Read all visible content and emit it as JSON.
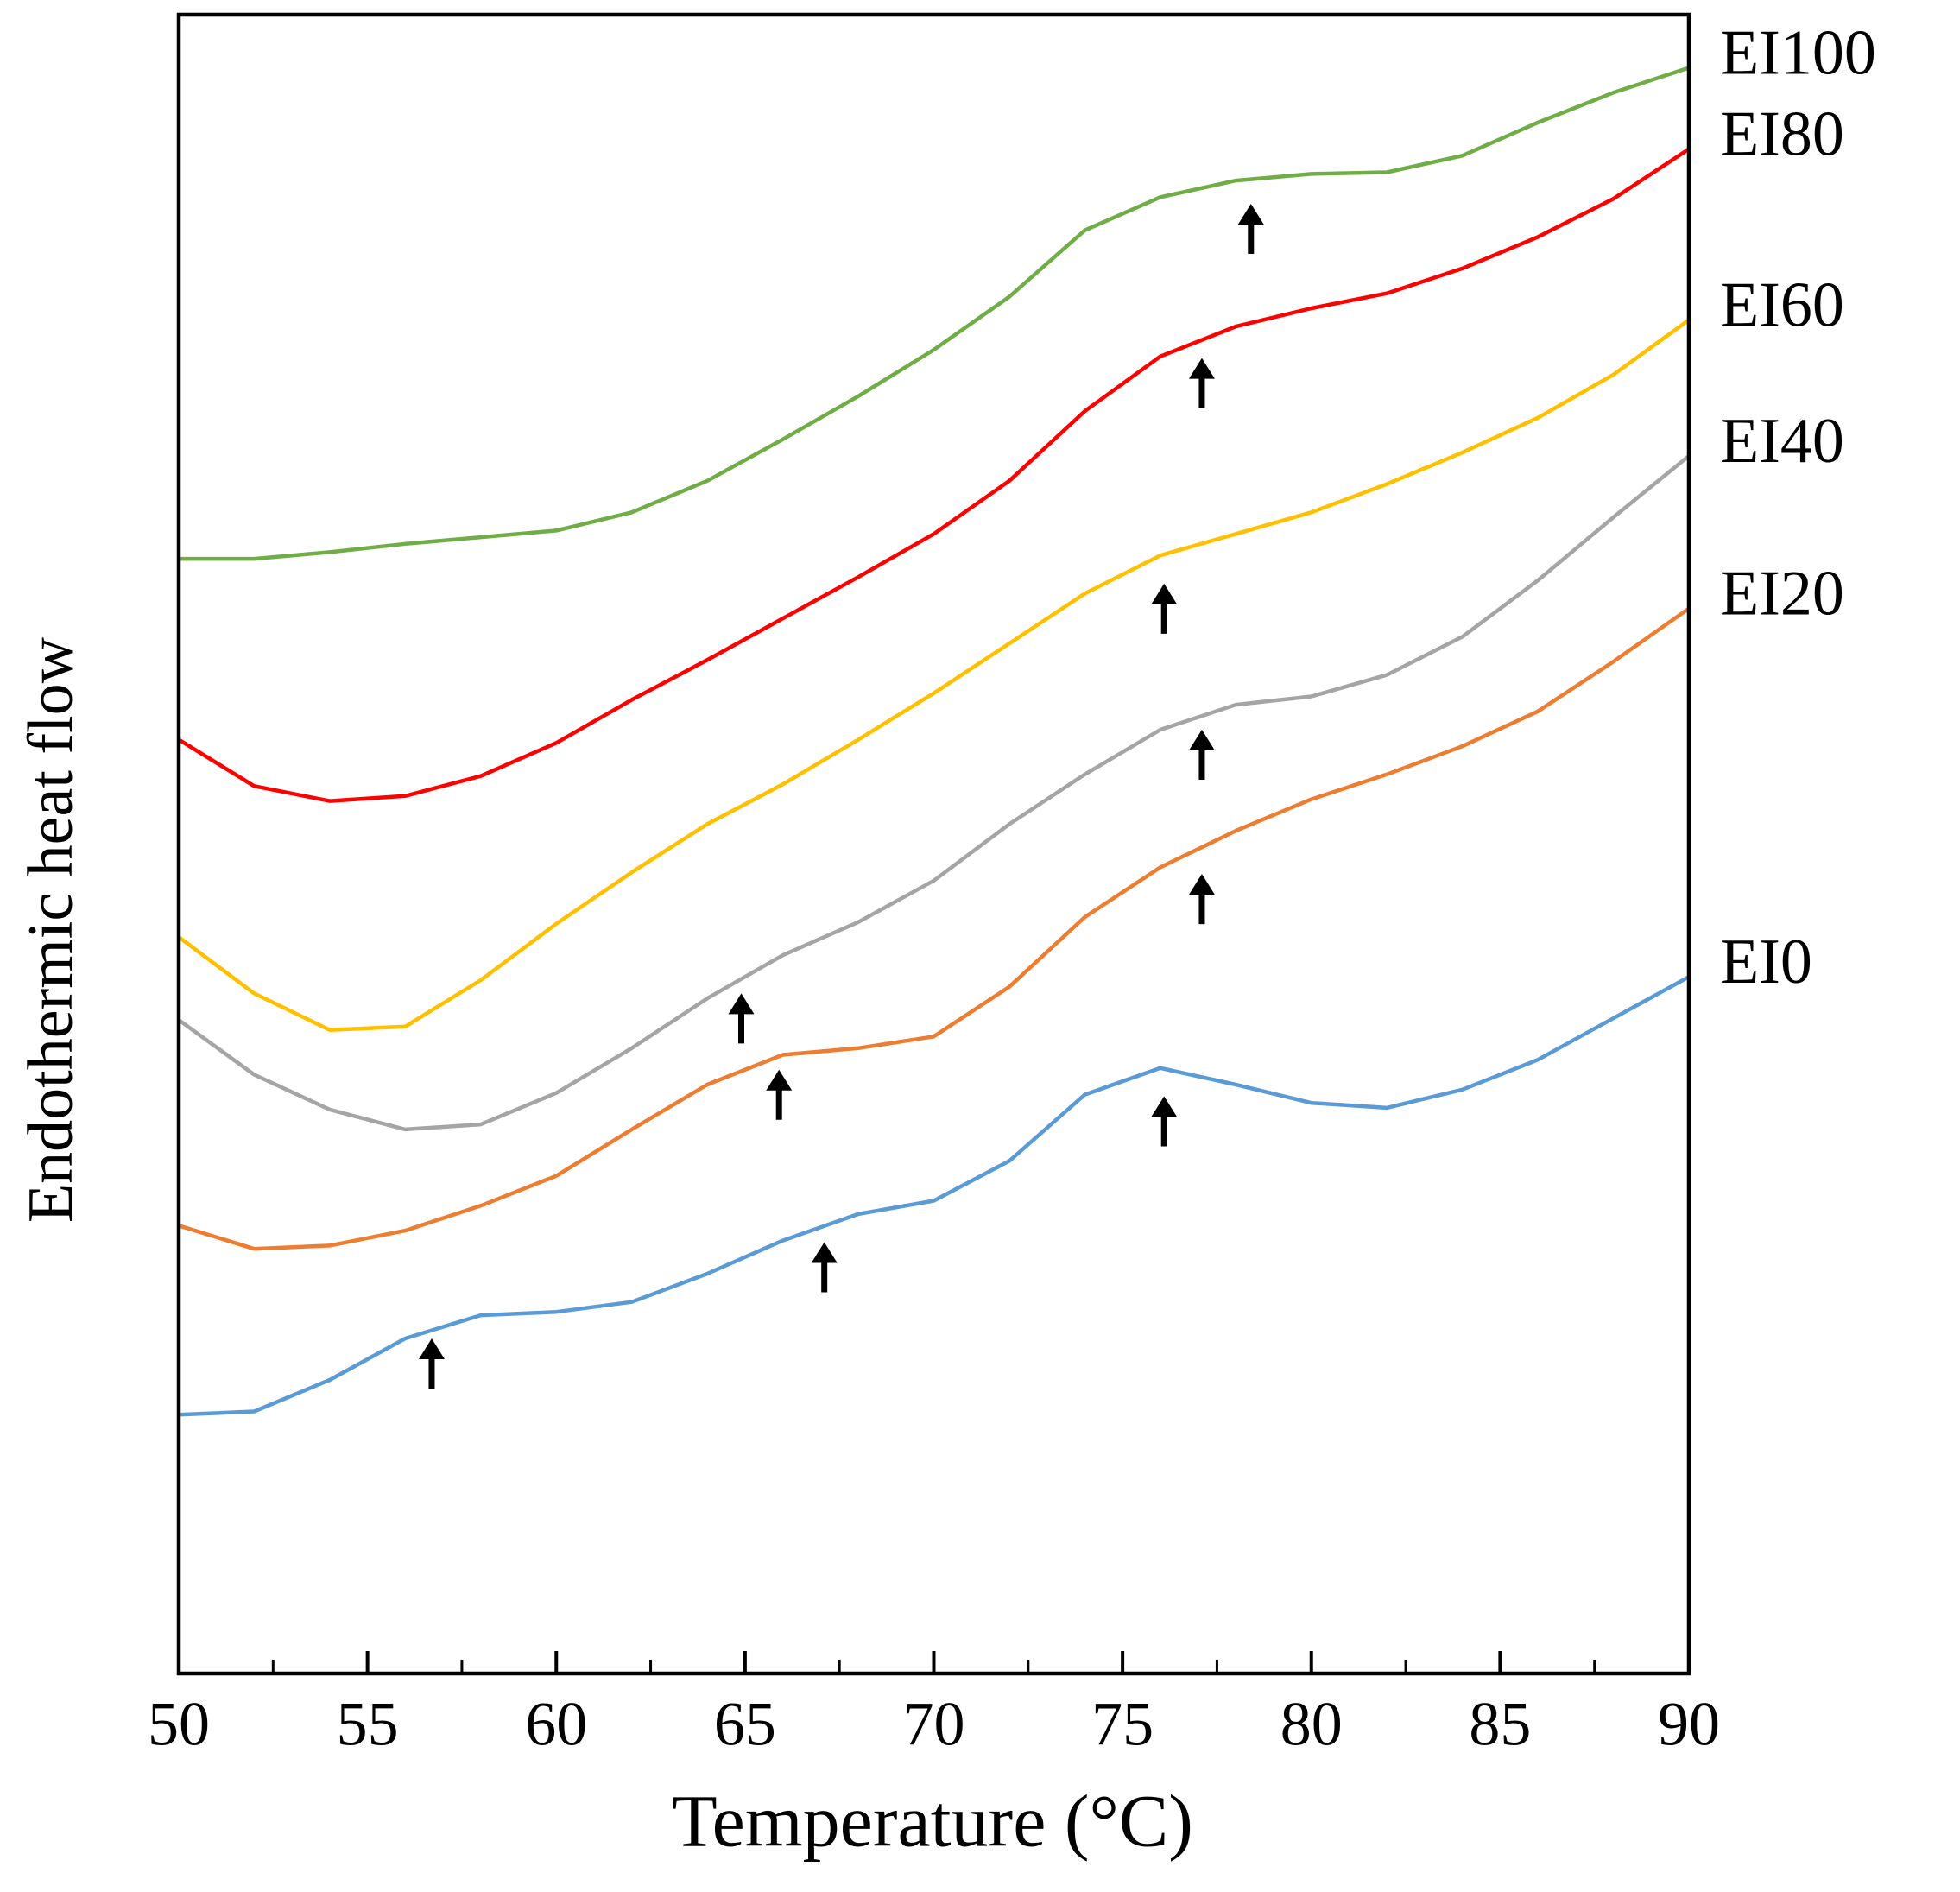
{
  "chart_data": {
    "type": "line",
    "x_label": "Temperature (°C)",
    "y_label": "Endothermic heat flow",
    "x": [
      50,
      52,
      54,
      56,
      58,
      60,
      62,
      64,
      66,
      68,
      70,
      72,
      74,
      76,
      78,
      80,
      82,
      84,
      86,
      88,
      90
    ],
    "xlim": [
      50,
      90
    ],
    "xticks": [
      50,
      55,
      60,
      65,
      70,
      75,
      80,
      85,
      90
    ],
    "xminorticks": [
      52.5,
      57.5,
      62.5,
      67.5,
      72.5,
      77.5,
      82.5,
      87.5
    ],
    "ylim": [
      0,
      100
    ],
    "series": [
      {
        "name": "EI0",
        "color": "#5b9bd5",
        "values": [
          15.6,
          15.8,
          17.7,
          20.2,
          21.6,
          21.8,
          22.4,
          24.1,
          26.1,
          27.7,
          28.5,
          30.9,
          34.9,
          36.5,
          35.5,
          34.4,
          34.1,
          35.2,
          37.0,
          39.5,
          42.0
        ]
      },
      {
        "name": "EI20",
        "color": "#ed7d31",
        "values": [
          27.0,
          25.6,
          25.8,
          26.7,
          28.2,
          30.0,
          32.8,
          35.5,
          37.3,
          37.7,
          38.4,
          41.4,
          45.6,
          48.6,
          50.8,
          52.7,
          54.2,
          55.9,
          58.0,
          61.0,
          64.2
        ]
      },
      {
        "name": "EI40",
        "color": "#a5a5a5",
        "values": [
          39.4,
          36.1,
          34.0,
          32.8,
          33.1,
          35.0,
          37.7,
          40.7,
          43.3,
          45.3,
          47.8,
          51.2,
          54.2,
          56.9,
          58.4,
          58.9,
          60.2,
          62.5,
          65.9,
          69.7,
          73.4
        ]
      },
      {
        "name": "EI60",
        "color": "#ffc000",
        "values": [
          44.4,
          41.0,
          38.8,
          39.0,
          41.8,
          45.2,
          48.3,
          51.2,
          53.6,
          56.3,
          59.1,
          62.1,
          65.1,
          67.4,
          68.7,
          70.0,
          71.7,
          73.6,
          75.7,
          78.3,
          81.6
        ]
      },
      {
        "name": "EI80",
        "color": "#ff0000",
        "values": [
          56.3,
          53.5,
          52.6,
          52.9,
          54.1,
          56.1,
          58.7,
          61.1,
          63.6,
          66.1,
          68.7,
          71.9,
          76.1,
          79.4,
          81.2,
          82.3,
          83.2,
          84.7,
          86.6,
          88.9,
          91.9
        ]
      },
      {
        "name": "EI100",
        "color": "#70ad47",
        "values": [
          67.2,
          67.2,
          67.6,
          68.1,
          68.5,
          68.9,
          70.0,
          71.9,
          74.4,
          77.0,
          79.8,
          83.0,
          87.0,
          89.0,
          90.0,
          90.4,
          90.5,
          91.5,
          93.5,
          95.3,
          96.8
        ]
      }
    ],
    "arrows": [
      {
        "x": 56.7,
        "y": 20.2
      },
      {
        "x": 67.1,
        "y": 26.0
      },
      {
        "x": 76.1,
        "y": 34.8
      },
      {
        "x": 65.9,
        "y": 36.4
      },
      {
        "x": 77.1,
        "y": 48.2
      },
      {
        "x": 64.9,
        "y": 41.0
      },
      {
        "x": 77.1,
        "y": 56.9
      },
      {
        "x": 76.1,
        "y": 65.7
      },
      {
        "x": 77.1,
        "y": 79.3
      },
      {
        "x": 78.4,
        "y": 88.6
      }
    ]
  }
}
